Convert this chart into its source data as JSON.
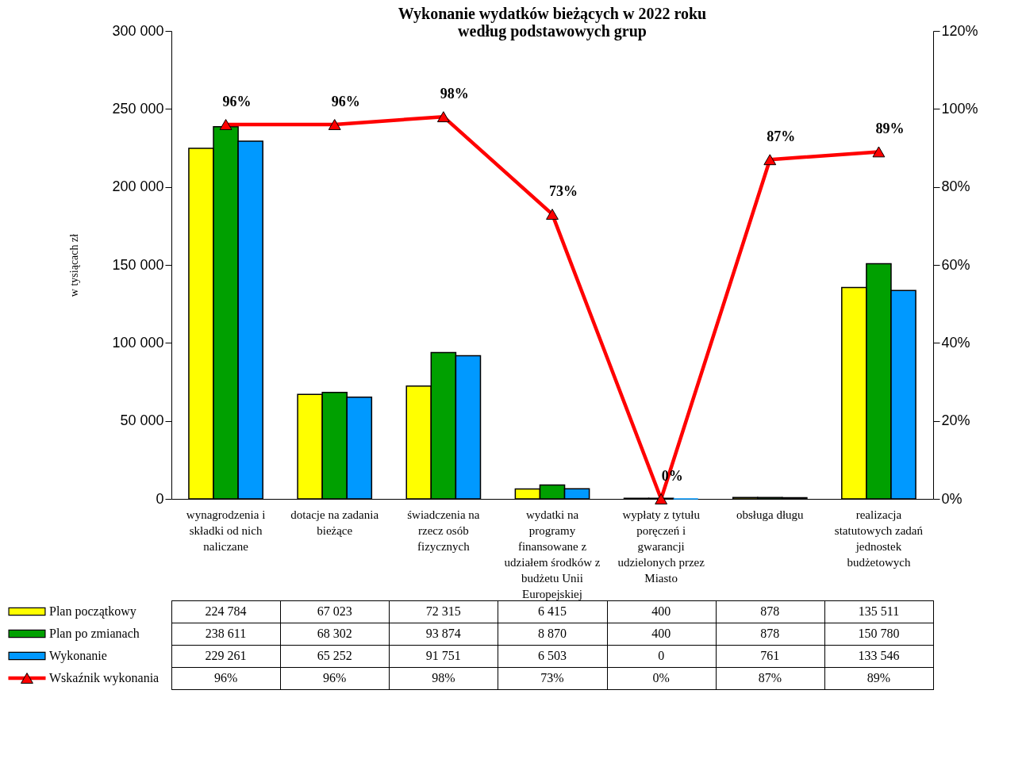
{
  "chart_data": {
    "type": "bar",
    "title": "Wykonanie wydatków bieżących w 2022 roku",
    "subtitle": "według podstawowych grup",
    "ylabel": "w tysiącach zł",
    "categories": [
      "wynagrodzenia i składki od nich naliczane",
      "dotacje na zadania bieżące",
      "świadczenia na rzecz osób fizycznych",
      "wydatki na programy finansowane z udziałem środków z budżetu Unii Europejskiej",
      "wypłaty z tytułu poręczeń i gwarancji udzielonych przez Miasto",
      "obsługa długu",
      "realizacja statutowych zadań jednostek budżetowych"
    ],
    "ylim": [
      0,
      300000
    ],
    "yticks": [
      0,
      {
        "value": 50000,
        "label": "50 000"
      },
      {
        "value": 100000,
        "label": "100 000"
      },
      {
        "value": 150000,
        "label": "150 000"
      },
      {
        "value": 200000,
        "label": "200 000"
      },
      {
        "value": 250000,
        "label": "250 000"
      },
      {
        "value": 300000,
        "label": "300 000"
      }
    ],
    "y2lim": [
      0,
      120
    ],
    "y2ticks": [
      {
        "value": 0,
        "label": "0%"
      },
      {
        "value": 20,
        "label": "20%"
      },
      {
        "value": 40,
        "label": "40%"
      },
      {
        "value": 60,
        "label": "60%"
      },
      {
        "value": 80,
        "label": "80%"
      },
      {
        "value": 100,
        "label": "100%"
      },
      {
        "value": 120,
        "label": "120%"
      }
    ],
    "legend": "bottom left",
    "marker": "triangle",
    "series": [
      {
        "name": "Plan początkowy",
        "color": "#ffff00",
        "values": [
          224784,
          67023,
          72315,
          6415,
          400,
          878,
          135511
        ],
        "value_labels": [
          "224 784",
          "67 023",
          "72 315",
          "6 415",
          "400",
          "878",
          "135 511"
        ]
      },
      {
        "name": "Plan po zmianach",
        "color": "#00a000",
        "values": [
          238611,
          68302,
          93874,
          8870,
          400,
          878,
          150780
        ],
        "value_labels": [
          "238 611",
          "68 302",
          "93 874",
          "8 870",
          "400",
          "878",
          "150 780"
        ]
      },
      {
        "name": "Wykonanie",
        "color": "#0099ff",
        "values": [
          229261,
          65252,
          91751,
          6503,
          0,
          761,
          133546
        ],
        "value_labels": [
          "229 261",
          "65 252",
          "91 751",
          "6 503",
          "0",
          "761",
          "133 546"
        ]
      },
      {
        "name": "Wskaźnik wykonania",
        "type": "line",
        "axis": "y2",
        "color": "#ff0000",
        "values": [
          96,
          96,
          98,
          73,
          0,
          87,
          89
        ],
        "value_labels": [
          "96%",
          "96%",
          "98%",
          "73%",
          "0%",
          "87%",
          "89%"
        ]
      }
    ]
  }
}
